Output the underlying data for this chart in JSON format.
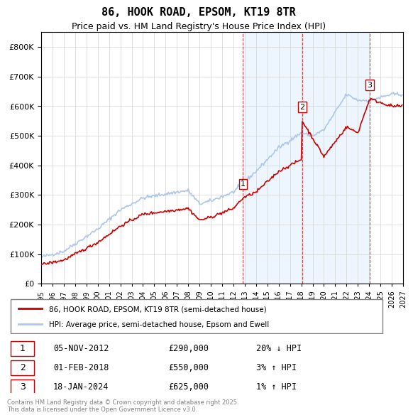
{
  "title": "86, HOOK ROAD, EPSOM, KT19 8TR",
  "subtitle": "Price paid vs. HM Land Registry's House Price Index (HPI)",
  "legend_line1": "86, HOOK ROAD, EPSOM, KT19 8TR (semi-detached house)",
  "legend_line2": "HPI: Average price, semi-detached house, Epsom and Ewell",
  "transactions": [
    {
      "num": 1,
      "date": "05-NOV-2012",
      "price": 290000,
      "hpi_rel": "20% ↓ HPI",
      "year": 2012.85
    },
    {
      "num": 2,
      "date": "01-FEB-2018",
      "price": 550000,
      "hpi_rel": "3% ↑ HPI",
      "year": 2018.08
    },
    {
      "num": 3,
      "date": "18-JAN-2024",
      "price": 625000,
      "hpi_rel": "1% ↑ HPI",
      "year": 2024.05
    }
  ],
  "copyright": "Contains HM Land Registry data © Crown copyright and database right 2025.\nThis data is licensed under the Open Government Licence v3.0.",
  "hpi_color": "#aec6e8",
  "price_color": "#cc0000",
  "shade_color": "#ddeeff",
  "vline_color": "#cc0000",
  "ylim": [
    0,
    850000
  ],
  "xlim_start": 1995,
  "xlim_end": 2027
}
